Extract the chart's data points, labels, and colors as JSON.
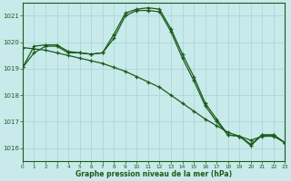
{
  "title": "Graphe pression niveau de la mer (hPa)",
  "background_color": "#c8eaea",
  "line_color": "#1a5c1a",
  "grid_color": "#a8d4d4",
  "xlim": [
    0,
    23
  ],
  "ylim": [
    1015.5,
    1021.5
  ],
  "yticks": [
    1016,
    1017,
    1018,
    1019,
    1020,
    1021
  ],
  "xticks": [
    0,
    1,
    2,
    3,
    4,
    5,
    6,
    7,
    8,
    9,
    10,
    11,
    12,
    13,
    14,
    15,
    16,
    17,
    18,
    19,
    20,
    21,
    22,
    23
  ],
  "series1": {
    "x": [
      0,
      1,
      2,
      3,
      4,
      5,
      6,
      7,
      8,
      9,
      10,
      11,
      12,
      13,
      14,
      15,
      16,
      17,
      18,
      19,
      20,
      21,
      22,
      23
    ],
    "y": [
      1019.05,
      1019.6,
      1019.85,
      1019.85,
      1019.6,
      1019.6,
      1019.55,
      1019.6,
      1020.3,
      1021.1,
      1021.25,
      1021.3,
      1021.25,
      1020.5,
      1019.55,
      1018.7,
      1017.7,
      1017.1,
      1016.5,
      1016.45,
      1016.1,
      1016.5,
      1016.5,
      1016.2
    ]
  },
  "series2": {
    "x": [
      0,
      1,
      2,
      3,
      4,
      5,
      6,
      7,
      8,
      9,
      10,
      11,
      12,
      13,
      14,
      15,
      16,
      17,
      18,
      19,
      20,
      21,
      22,
      23
    ],
    "y": [
      1019.05,
      1019.85,
      1019.9,
      1019.9,
      1019.65,
      1019.6,
      1019.55,
      1019.6,
      1020.15,
      1021.0,
      1021.2,
      1021.2,
      1021.15,
      1020.4,
      1019.4,
      1018.55,
      1017.6,
      1017.0,
      1016.5,
      1016.45,
      1016.15,
      1016.5,
      1016.5,
      1016.2
    ]
  },
  "series3": {
    "x": [
      0,
      1,
      2,
      3,
      4,
      5,
      6,
      7,
      8,
      9,
      10,
      11,
      12,
      13,
      14,
      15,
      16,
      17,
      18,
      19,
      20,
      21,
      22,
      23
    ],
    "y": [
      1019.8,
      1019.75,
      1019.7,
      1019.6,
      1019.5,
      1019.4,
      1019.3,
      1019.2,
      1019.05,
      1018.9,
      1018.7,
      1018.5,
      1018.3,
      1018.0,
      1017.7,
      1017.4,
      1017.1,
      1016.85,
      1016.6,
      1016.45,
      1016.3,
      1016.45,
      1016.45,
      1016.2
    ]
  }
}
